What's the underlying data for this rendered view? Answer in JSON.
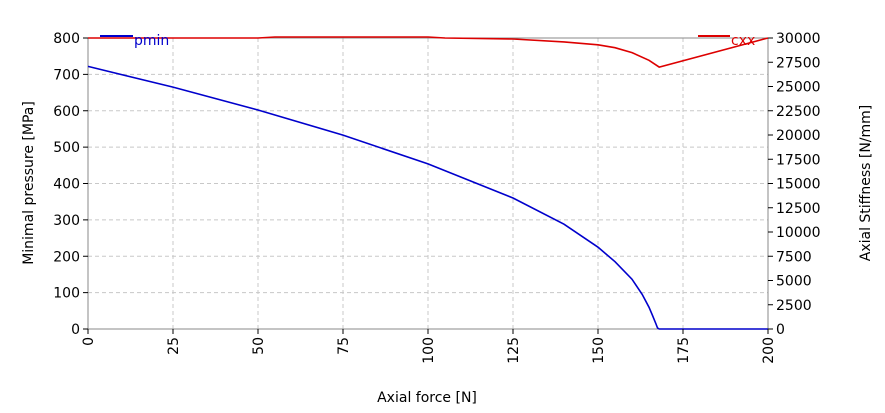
{
  "chart_data": {
    "type": "line",
    "x_axis": {
      "label": "Axial force [N]",
      "range": [
        0,
        200
      ],
      "ticks": [
        "0",
        "25",
        "50",
        "75",
        "100",
        "125",
        "150",
        "175",
        "200"
      ],
      "tick_values": [
        0,
        25,
        50,
        75,
        100,
        125,
        150,
        175,
        200
      ]
    },
    "y_axis_left": {
      "label": "Minimal pressure [MPa]",
      "range": [
        0,
        800
      ],
      "ticks": [
        "0",
        "100",
        "200",
        "300",
        "400",
        "500",
        "600",
        "700",
        "800"
      ],
      "tick_values": [
        0,
        100,
        200,
        300,
        400,
        500,
        600,
        700,
        800
      ]
    },
    "y_axis_right": {
      "label": "Axial Stiffness [N/mm]",
      "range": [
        0,
        30000
      ],
      "ticks": [
        "0",
        "2500",
        "5000",
        "7500",
        "10000",
        "12500",
        "15000",
        "17500",
        "20000",
        "22500",
        "25000",
        "27500",
        "30000"
      ],
      "tick_values": [
        0,
        2500,
        5000,
        7500,
        10000,
        12500,
        15000,
        17500,
        20000,
        22500,
        25000,
        27500,
        30000
      ]
    },
    "grid": true,
    "legend_placement": "top-left and top-right",
    "series": [
      {
        "name": "pmin",
        "axis": "left",
        "color": "#0000cc",
        "x": [
          0,
          25,
          50,
          75,
          100,
          125,
          140,
          150,
          155,
          160,
          163,
          165,
          166,
          167,
          167.5,
          168,
          200
        ],
        "y": [
          722,
          665,
          602,
          533,
          454,
          360,
          288,
          225,
          185,
          137,
          95,
          60,
          38,
          15,
          3,
          0,
          0
        ]
      },
      {
        "name": "cxx",
        "axis": "right",
        "color": "#dd0000",
        "x": [
          0,
          50,
          55,
          100,
          105,
          125,
          140,
          150,
          155,
          160,
          165,
          168,
          200
        ],
        "y": [
          30000,
          30000,
          30100,
          30100,
          30000,
          29900,
          29600,
          29300,
          29000,
          28500,
          27700,
          27000,
          30000
        ]
      }
    ]
  }
}
